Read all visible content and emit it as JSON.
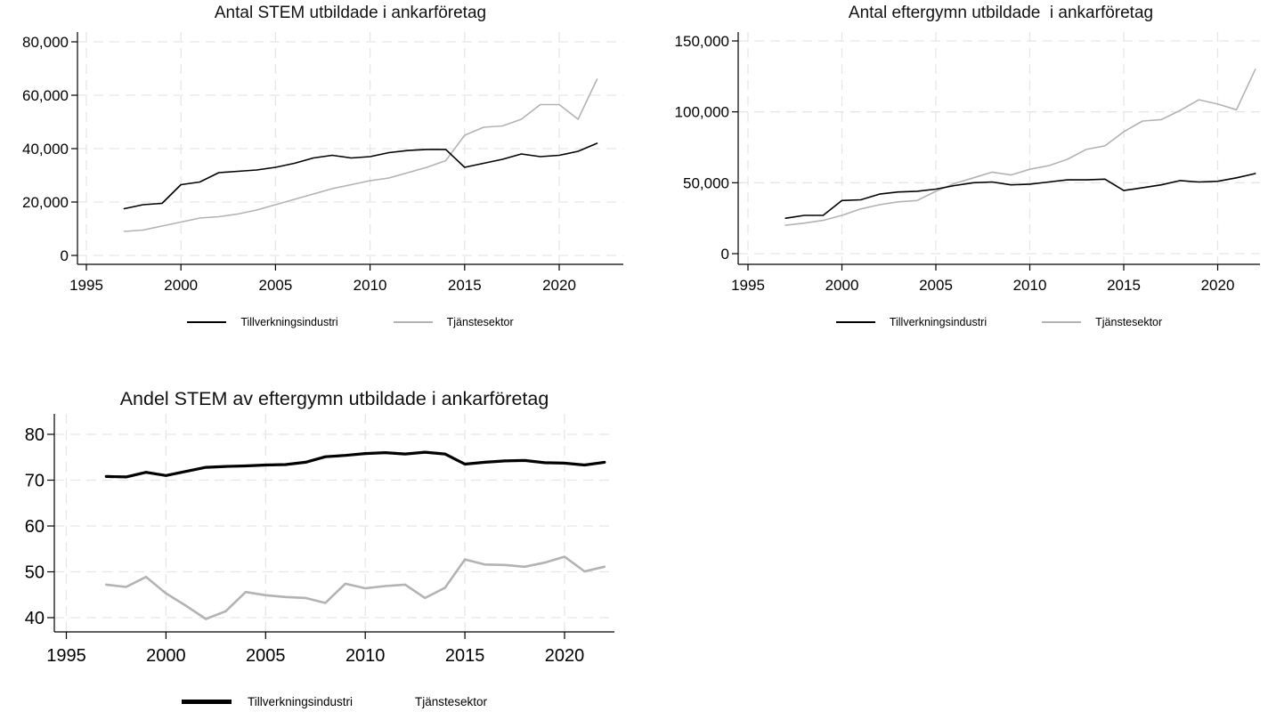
{
  "colors": {
    "tillverkningsindustri": "#000000",
    "tjanstesektor": "#b3b3b3",
    "gridline": "#e6e6e6",
    "axis": "#000000"
  },
  "chart_data": [
    {
      "type": "line",
      "title": "Antal STEM utbildade i ankarföretag",
      "xlabel": "",
      "ylabel": "",
      "x": [
        1997,
        1998,
        1999,
        2000,
        2001,
        2002,
        2003,
        2004,
        2005,
        2006,
        2007,
        2008,
        2009,
        2010,
        2011,
        2012,
        2013,
        2014,
        2015,
        2016,
        2017,
        2018,
        2019,
        2020,
        2021,
        2022
      ],
      "x_ticks": [
        1995,
        2000,
        2005,
        2010,
        2015,
        2020
      ],
      "y_ticks": [
        0,
        20000,
        40000,
        60000,
        80000
      ],
      "y_tick_labels": [
        "0",
        "20,000",
        "40,000",
        "60,000",
        "80,000"
      ],
      "ylim": [
        0,
        83500
      ],
      "xlim": [
        1994.5,
        2023.4
      ],
      "grid": "dashed",
      "legend_position": "bottom",
      "series": [
        {
          "name": "Tillverkningsindustri",
          "color": "#000000",
          "values": [
            17500,
            19000,
            19500,
            26500,
            27500,
            31000,
            31500,
            32000,
            33000,
            34500,
            36500,
            37500,
            36500,
            37000,
            38500,
            39300,
            39700,
            39700,
            33000,
            34500,
            36000,
            38000,
            37000,
            37500,
            39000,
            42000
          ]
        },
        {
          "name": "Tjänstesektor",
          "color": "#b3b3b3",
          "values": [
            9000,
            9500,
            11000,
            12500,
            14000,
            14500,
            15500,
            17000,
            19000,
            21000,
            23000,
            25000,
            26500,
            28000,
            29000,
            31000,
            33000,
            35500,
            45000,
            48000,
            48500,
            51000,
            56500,
            56500,
            51000,
            66000
          ]
        }
      ]
    },
    {
      "type": "line",
      "title": "Antal eftergymn utbildade  i ankarföretag",
      "xlabel": "",
      "ylabel": "",
      "x": [
        1997,
        1998,
        1999,
        2000,
        2001,
        2002,
        2003,
        2004,
        2005,
        2006,
        2007,
        2008,
        2009,
        2010,
        2011,
        2012,
        2013,
        2014,
        2015,
        2016,
        2017,
        2018,
        2019,
        2020,
        2021,
        2022
      ],
      "x_ticks": [
        1995,
        2000,
        2005,
        2010,
        2015,
        2020
      ],
      "y_ticks": [
        0,
        50000,
        100000,
        150000
      ],
      "y_tick_labels": [
        "0",
        "50,000",
        "100,000",
        "150,000"
      ],
      "ylim": [
        0,
        156000
      ],
      "xlim": [
        1994.5,
        2023.4
      ],
      "grid": "dashed",
      "legend_position": "bottom",
      "series": [
        {
          "name": "Tillverkningsindustri",
          "color": "#000000",
          "values": [
            25000,
            27000,
            27000,
            37500,
            38000,
            42000,
            43500,
            44000,
            45500,
            48000,
            50000,
            50500,
            48500,
            49000,
            50500,
            52000,
            52000,
            52500,
            44500,
            46500,
            48500,
            51500,
            50500,
            51000,
            53500,
            56500
          ]
        },
        {
          "name": "Tjänstesektor",
          "color": "#b3b3b3",
          "values": [
            20000,
            21500,
            23500,
            27000,
            31500,
            34500,
            36500,
            37500,
            44000,
            49500,
            53500,
            57500,
            55500,
            59500,
            62000,
            66500,
            73500,
            76000,
            86000,
            93500,
            94500,
            101000,
            108500,
            105500,
            101500,
            130000
          ]
        }
      ]
    },
    {
      "type": "line",
      "title": "Andel STEM av eftergymn utbildade i ankarföretag",
      "xlabel": "",
      "ylabel": "",
      "x": [
        1997,
        1998,
        1999,
        2000,
        2001,
        2002,
        2003,
        2004,
        2005,
        2006,
        2007,
        2008,
        2009,
        2010,
        2011,
        2012,
        2013,
        2014,
        2015,
        2016,
        2017,
        2018,
        2019,
        2020,
        2021,
        2022
      ],
      "x_ticks": [
        1995,
        2000,
        2005,
        2010,
        2015,
        2020
      ],
      "y_ticks": [
        40,
        50,
        60,
        70,
        80
      ],
      "y_tick_labels": [
        "40",
        "50",
        "60",
        "70",
        "80"
      ],
      "ylim": [
        38,
        84.5
      ],
      "xlim": [
        1994.5,
        2023.4
      ],
      "grid": "dashed",
      "legend_position": "bottom",
      "series": [
        {
          "name": "Tillverkningsindustri",
          "color": "#000000",
          "values": [
            70.8,
            70.7,
            71.7,
            71.0,
            71.9,
            72.8,
            73.0,
            73.1,
            73.3,
            73.4,
            73.9,
            75.1,
            75.4,
            75.8,
            76.0,
            75.7,
            76.1,
            75.7,
            73.5,
            73.9,
            74.2,
            74.3,
            73.8,
            73.7,
            73.3,
            73.9
          ]
        },
        {
          "name": "Tjänstesektor",
          "color": "#b3b3b3",
          "values": [
            47.2,
            46.7,
            48.9,
            45.3,
            42.6,
            39.7,
            41.4,
            45.6,
            44.9,
            44.5,
            44.3,
            43.2,
            47.4,
            46.4,
            46.9,
            47.2,
            44.3,
            46.5,
            52.7,
            51.6,
            51.5,
            51.1,
            52.0,
            53.3,
            50.1,
            51.1
          ]
        }
      ]
    }
  ]
}
